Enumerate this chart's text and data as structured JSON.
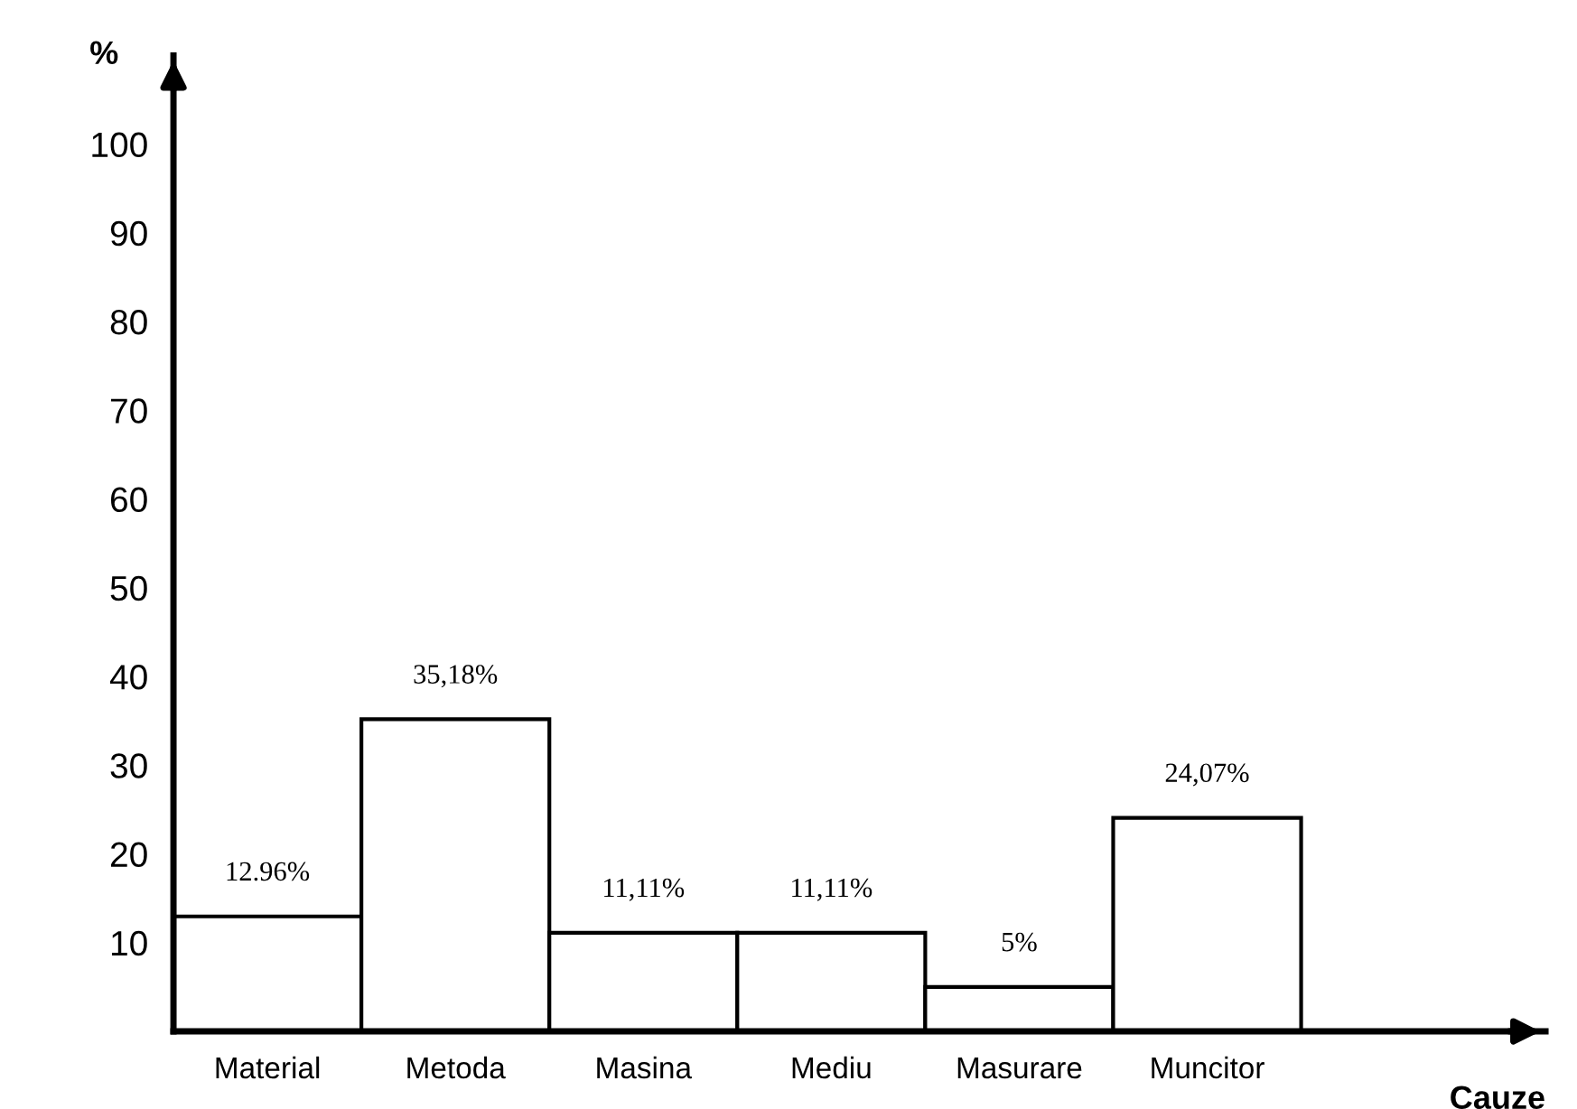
{
  "chart_data": {
    "type": "bar",
    "categories": [
      "Material",
      "Metoda",
      "Masina",
      "Mediu",
      "Masurare",
      "Muncitor"
    ],
    "values": [
      12.96,
      35.18,
      11.11,
      11.11,
      5,
      24.07
    ],
    "value_labels": [
      "12.96%",
      "35,18%",
      "11,11%",
      "11,11%",
      "5%",
      "24,07%"
    ],
    "color": "#ffffff",
    "xlabel": "Cauze",
    "ylabel": "%",
    "ylim": [
      0,
      110
    ],
    "yticks": [
      10,
      20,
      30,
      40,
      50,
      60,
      70,
      80,
      90,
      100
    ],
    "grid": false,
    "legend": false
  }
}
